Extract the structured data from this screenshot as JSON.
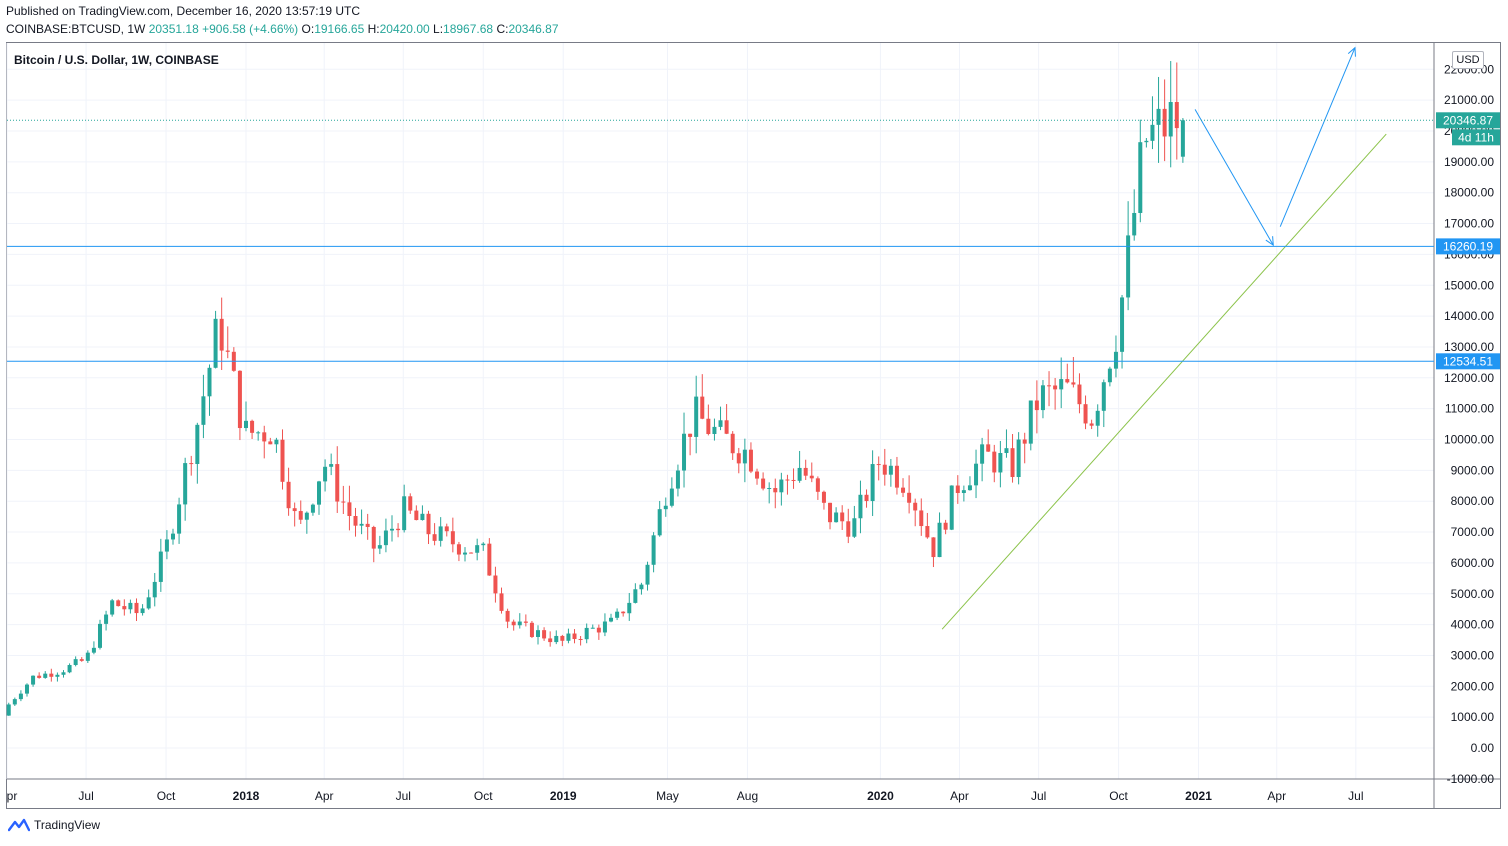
{
  "header": {
    "published": "Published on TradingView.com, December 16, 2020 13:57:19 UTC",
    "symbol": "COINBASE:BTCUSD, 1W",
    "last": "20351.18",
    "change": "+906.58 (+4.66%)",
    "o_label": "O:",
    "o_value": "19166.65",
    "h_label": "H:",
    "h_value": "20420.00",
    "l_label": "L:",
    "l_value": "18967.68",
    "c_label": "C:",
    "c_value": "20346.87"
  },
  "chart_title": "Bitcoin / U.S. Dollar, 1W, COINBASE",
  "currency": "USD",
  "footer": {
    "brand": "TradingView"
  },
  "colors": {
    "up": "#26a69a",
    "down": "#ef5350",
    "level": "#2196f3",
    "trend": "#8bc34a",
    "arrow": "#2196f3",
    "axis_text": "#131722"
  },
  "chart_data": {
    "type": "candlestick",
    "title": "Bitcoin / U.S. Dollar, 1W, COINBASE",
    "ylim": [
      -1000,
      22500
    ],
    "y_ticks": [
      -1000,
      0,
      1000,
      2000,
      3000,
      4000,
      5000,
      6000,
      7000,
      8000,
      9000,
      10000,
      11000,
      12000,
      13000,
      14000,
      15000,
      16000,
      17000,
      18000,
      19000,
      20000,
      21000,
      22000
    ],
    "x_range": [
      "2017-04-01",
      "2021-09-15"
    ],
    "x_ticks": [
      {
        "label": "pr",
        "date": "2017-04-01",
        "bold": false
      },
      {
        "label": "Jul",
        "date": "2017-07-01",
        "bold": false
      },
      {
        "label": "Oct",
        "date": "2017-10-01",
        "bold": false
      },
      {
        "label": "2018",
        "date": "2018-01-01",
        "bold": true
      },
      {
        "label": "Apr",
        "date": "2018-04-01",
        "bold": false
      },
      {
        "label": "Jul",
        "date": "2018-07-01",
        "bold": false
      },
      {
        "label": "Oct",
        "date": "2018-10-01",
        "bold": false
      },
      {
        "label": "2019",
        "date": "2019-01-01",
        "bold": true
      },
      {
        "label": "May",
        "date": "2019-05-01",
        "bold": false
      },
      {
        "label": "Aug",
        "date": "2019-08-01",
        "bold": false
      },
      {
        "label": "2020",
        "date": "2020-01-01",
        "bold": true
      },
      {
        "label": "Apr",
        "date": "2020-04-01",
        "bold": false
      },
      {
        "label": "Jul",
        "date": "2020-07-01",
        "bold": false
      },
      {
        "label": "Oct",
        "date": "2020-10-01",
        "bold": false
      },
      {
        "label": "2021",
        "date": "2021-01-01",
        "bold": true
      },
      {
        "label": "Apr",
        "date": "2021-04-01",
        "bold": false
      },
      {
        "label": "Jul",
        "date": "2021-07-01",
        "bold": false
      }
    ],
    "monthly_closes": [
      [
        "2017-04",
        1350
      ],
      [
        "2017-05",
        2300
      ],
      [
        "2017-06",
        2500
      ],
      [
        "2017-07",
        2870
      ],
      [
        "2017-08",
        4700
      ],
      [
        "2017-09",
        4340
      ],
      [
        "2017-10",
        6450
      ],
      [
        "2017-11",
        9900
      ],
      [
        "2017-12",
        13800
      ],
      [
        "2018-01",
        10200
      ],
      [
        "2018-02",
        10300
      ],
      [
        "2018-03",
        6900
      ],
      [
        "2018-04",
        9240
      ],
      [
        "2018-05",
        7500
      ],
      [
        "2018-06",
        6400
      ],
      [
        "2018-07",
        7730
      ],
      [
        "2018-08",
        7000
      ],
      [
        "2018-09",
        6620
      ],
      [
        "2018-10",
        6320
      ],
      [
        "2018-11",
        4020
      ],
      [
        "2018-12",
        3740
      ],
      [
        "2019-01",
        3440
      ],
      [
        "2019-02",
        3820
      ],
      [
        "2019-03",
        4100
      ],
      [
        "2019-04",
        5320
      ],
      [
        "2019-05",
        8570
      ],
      [
        "2019-06",
        10800
      ],
      [
        "2019-07",
        10080
      ],
      [
        "2019-08",
        9600
      ],
      [
        "2019-09",
        8300
      ],
      [
        "2019-10",
        9150
      ],
      [
        "2019-11",
        7550
      ],
      [
        "2019-12",
        7200
      ],
      [
        "2020-01",
        9350
      ],
      [
        "2020-02",
        8600
      ],
      [
        "2020-03",
        6400
      ],
      [
        "2020-04",
        8620
      ],
      [
        "2020-05",
        9450
      ],
      [
        "2020-06",
        9140
      ],
      [
        "2020-07",
        11350
      ],
      [
        "2020-08",
        11650
      ],
      [
        "2020-09",
        10780
      ],
      [
        "2020-10",
        13800
      ],
      [
        "2020-11",
        19700
      ],
      [
        "2020-12",
        20346.87
      ]
    ],
    "last_candle": {
      "date": "2020-12-14",
      "open": 19166.65,
      "high": 20420.0,
      "low": 18967.68,
      "close": 20346.87
    },
    "price_lines": [
      {
        "value": 20346.87,
        "label": "20346.87",
        "style": "dotted",
        "color": "#26a69a",
        "countdown": "4d 11h"
      },
      {
        "value": 16260.19,
        "label": "16260.19",
        "style": "solid",
        "color": "#2196f3"
      },
      {
        "value": 12534.51,
        "label": "12534.51",
        "style": "solid",
        "color": "#2196f3"
      }
    ],
    "trendline": {
      "from": {
        "date": "2020-03-12",
        "value": 3850
      },
      "to": {
        "date": "2021-08-05",
        "value": 19900
      }
    },
    "projection_arrows": [
      {
        "from": {
          "date": "2020-12-28",
          "value": 20700
        },
        "to": {
          "date": "2021-03-28",
          "value": 16300
        }
      },
      {
        "from": {
          "date": "2021-04-05",
          "value": 16900
        },
        "to": {
          "date": "2021-06-30",
          "value": 22700
        }
      }
    ]
  }
}
